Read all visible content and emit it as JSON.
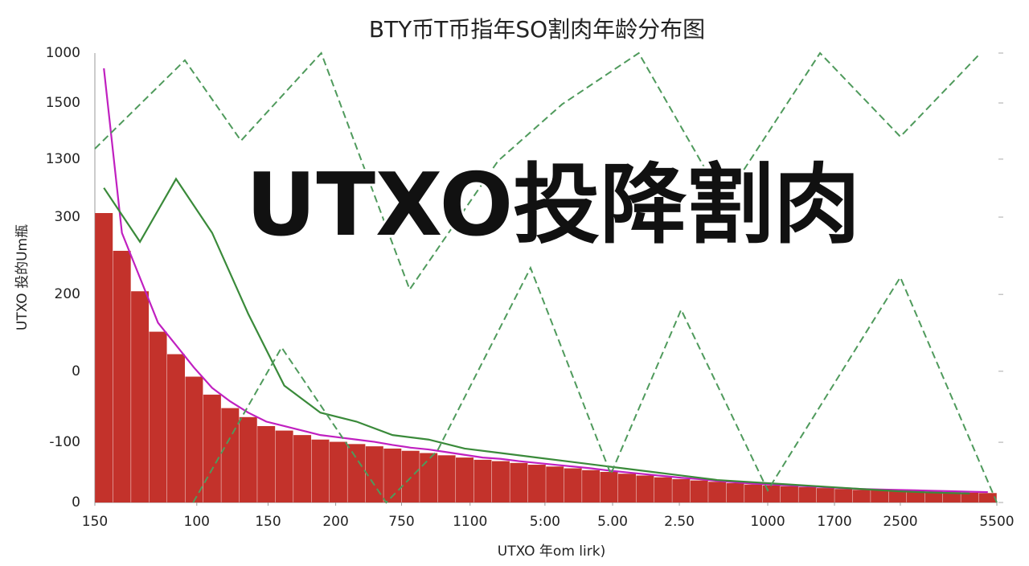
{
  "chart_data": {
    "type": "bar",
    "title": "BTY币T币指年SO割肉年龄分布图",
    "annotation": "UTXO投降割肉",
    "x_label": "UTXO 年om lirk)",
    "y_label": "UTXO 投的Um瓶",
    "xlim": [
      0,
      100
    ],
    "ylim": [
      0,
      1000
    ],
    "xticks": [
      {
        "value": 0,
        "label": "150"
      },
      {
        "value": 11.3,
        "label": "100"
      },
      {
        "value": 19.2,
        "label": "150"
      },
      {
        "value": 26.7,
        "label": "200"
      },
      {
        "value": 34.0,
        "label": "750"
      },
      {
        "value": 41.6,
        "label": "1100"
      },
      {
        "value": 49.9,
        "label": "5:00"
      },
      {
        "value": 57.4,
        "label": "5.00"
      },
      {
        "value": 64.8,
        "label": "2.50"
      },
      {
        "value": 74.6,
        "label": "1000"
      },
      {
        "value": 82.0,
        "label": "1700"
      },
      {
        "value": 89.3,
        "label": "2500"
      },
      {
        "value": 100,
        "label": "5500"
      }
    ],
    "yticks": [
      {
        "value": 1000,
        "label": "1000"
      },
      {
        "value": 889,
        "label": "1500"
      },
      {
        "value": 764,
        "label": "1300"
      },
      {
        "value": 635,
        "label": "300"
      },
      {
        "value": 463,
        "label": "200"
      },
      {
        "value": 292,
        "label": "0"
      },
      {
        "value": 134,
        "label": "-100"
      },
      0
    ],
    "series": [
      {
        "kind": "bar",
        "color": "#c3322b",
        "x": [
          1,
          3,
          5,
          7,
          9,
          11,
          13,
          15,
          17,
          19,
          21,
          23,
          25,
          27,
          29,
          31,
          33,
          35,
          37,
          39,
          41,
          43,
          45,
          47,
          49,
          51,
          53,
          55,
          57,
          59,
          61,
          63,
          65,
          67,
          69,
          71,
          73,
          75,
          77,
          79,
          81,
          83,
          85,
          87,
          89,
          91,
          93,
          95,
          97,
          99
        ],
        "values": [
          644,
          560,
          470,
          380,
          330,
          280,
          240,
          210,
          190,
          170,
          160,
          150,
          140,
          135,
          130,
          125,
          120,
          115,
          110,
          105,
          100,
          95,
          92,
          88,
          84,
          80,
          76,
          72,
          68,
          64,
          60,
          56,
          52,
          49,
          46,
          43,
          40,
          38,
          36,
          34,
          32,
          30,
          28,
          27,
          26,
          25,
          24,
          23,
          22,
          21
        ]
      },
      {
        "kind": "line",
        "color": "#c020c0",
        "x": [
          1,
          3,
          5,
          7,
          9,
          11,
          13,
          15,
          17,
          19,
          21,
          23,
          25,
          27,
          29,
          31,
          33,
          35,
          37,
          39,
          41,
          43,
          45,
          47,
          49,
          51,
          53,
          55,
          57,
          59,
          61,
          63,
          65,
          67,
          69,
          71,
          73,
          75,
          77,
          79,
          81,
          83,
          85,
          87,
          89,
          91,
          93,
          95,
          97,
          99
        ],
        "values": [
          966,
          600,
          500,
          400,
          350,
          300,
          255,
          225,
          200,
          180,
          170,
          160,
          150,
          145,
          140,
          135,
          128,
          122,
          118,
          112,
          106,
          100,
          97,
          92,
          88,
          84,
          80,
          76,
          71,
          67,
          63,
          59,
          55,
          52,
          48,
          45,
          42,
          40,
          38,
          36,
          34,
          32,
          30,
          29,
          28,
          27,
          26,
          25,
          24,
          23
        ]
      },
      {
        "kind": "line",
        "color": "#3a8a3a",
        "x": [
          1,
          5,
          9,
          13,
          17,
          21,
          25,
          29,
          33,
          37,
          41,
          45,
          49,
          53,
          57,
          61,
          65,
          69,
          73,
          77,
          81,
          85,
          89,
          93,
          97
        ],
        "values": [
          700,
          580,
          720,
          600,
          420,
          260,
          200,
          180,
          150,
          140,
          120,
          110,
          100,
          90,
          80,
          70,
          60,
          50,
          45,
          40,
          35,
          30,
          25,
          22,
          20
        ]
      },
      {
        "kind": "dashed",
        "color": "#4f9a5c",
        "x": [
          0,
          9.98,
          16.2,
          25.1,
          34.9,
          44.7,
          51.8,
          60.3,
          69.7,
          80.4,
          89.3,
          98.2
        ],
        "values": [
          787,
          984,
          805,
          1000,
          474,
          760,
          886,
          1000,
          671,
          1000,
          814,
          1000
        ]
      },
      {
        "kind": "dashed",
        "color": "#4f9a5c",
        "x": [
          10.9,
          20.7,
          32.3,
          38.0,
          48.3,
          57.2,
          65.0,
          74.6,
          89.3,
          100
        ],
        "values": [
          0,
          345,
          0,
          116,
          522,
          63,
          429,
          27,
          501,
          0
        ]
      }
    ]
  }
}
